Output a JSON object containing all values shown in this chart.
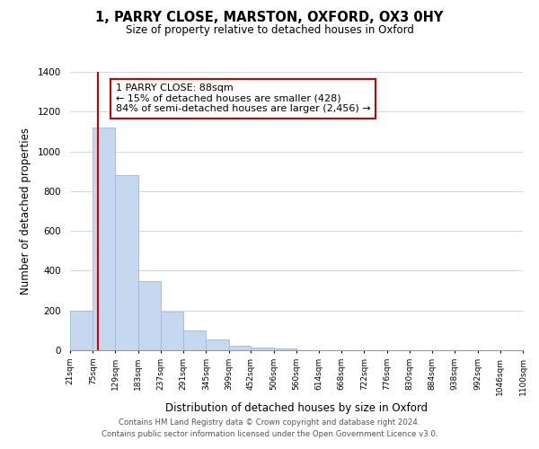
{
  "title": "1, PARRY CLOSE, MARSTON, OXFORD, OX3 0HY",
  "subtitle": "Size of property relative to detached houses in Oxford",
  "xlabel": "Distribution of detached houses by size in Oxford",
  "ylabel": "Number of detached properties",
  "bar_values": [
    200,
    1120,
    880,
    350,
    195,
    100,
    55,
    22,
    15,
    10,
    0,
    0,
    0,
    0,
    0,
    0,
    0,
    0,
    0,
    0
  ],
  "bin_edges": [
    21,
    75,
    129,
    183,
    237,
    291,
    345,
    399,
    452,
    506,
    560,
    614,
    668,
    722,
    776,
    830,
    884,
    938,
    992,
    1046,
    1100
  ],
  "tick_labels": [
    "21sqm",
    "75sqm",
    "129sqm",
    "183sqm",
    "237sqm",
    "291sqm",
    "345sqm",
    "399sqm",
    "452sqm",
    "506sqm",
    "560sqm",
    "614sqm",
    "668sqm",
    "722sqm",
    "776sqm",
    "830sqm",
    "884sqm",
    "938sqm",
    "992sqm",
    "1046sqm",
    "1100sqm"
  ],
  "bar_color": "#c5d8f0",
  "bar_edge_color": "#a0b8d8",
  "property_line_x": 88,
  "property_line_color": "#cc0000",
  "ylim": [
    0,
    1400
  ],
  "yticks": [
    0,
    200,
    400,
    600,
    800,
    1000,
    1200,
    1400
  ],
  "annotation_box_text": "1 PARRY CLOSE: 88sqm\n← 15% of detached houses are smaller (428)\n84% of semi-detached houses are larger (2,456) →",
  "footer_text": "Contains HM Land Registry data © Crown copyright and database right 2024.\nContains public sector information licensed under the Open Government Licence v3.0.",
  "background_color": "#ffffff",
  "grid_color": "#cdd8ea"
}
